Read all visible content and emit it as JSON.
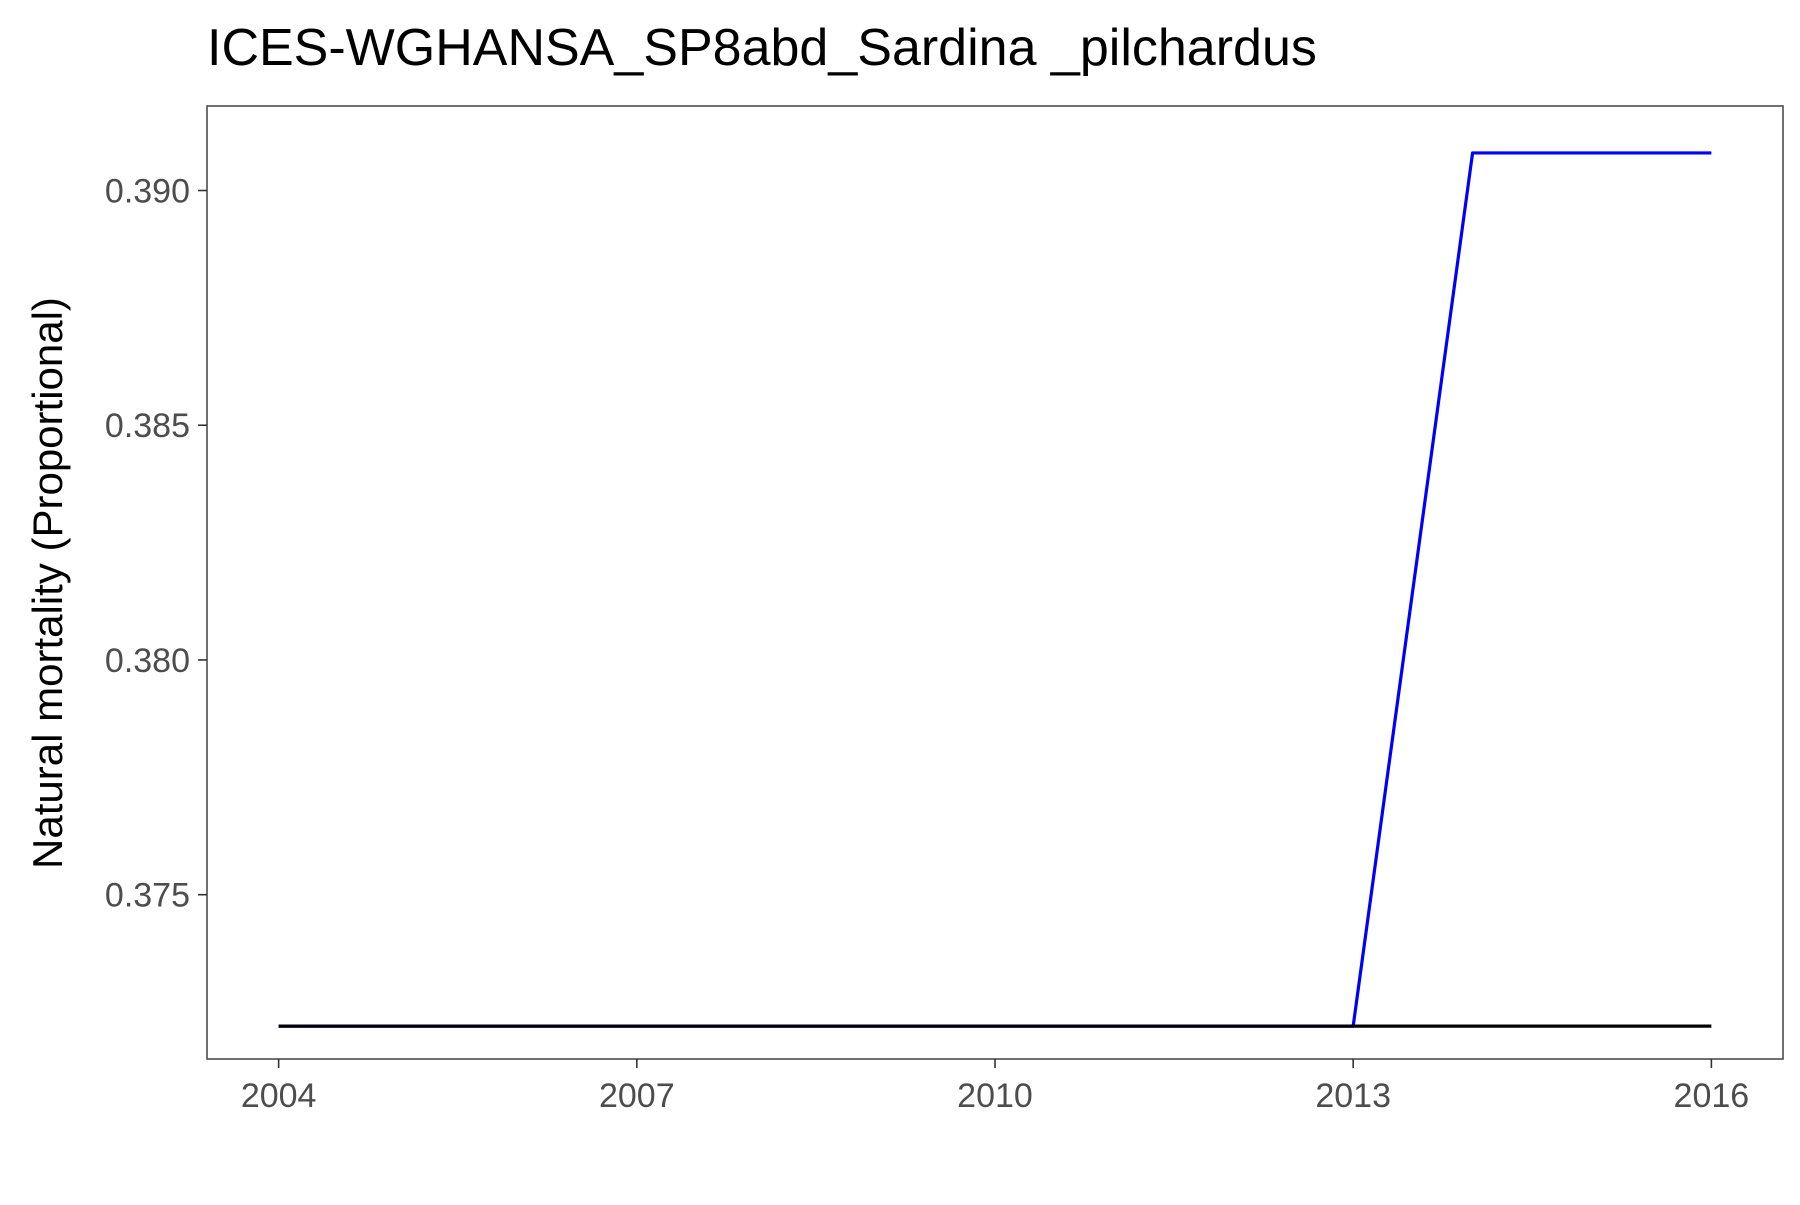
{
  "chart_data": {
    "type": "line",
    "title": "ICES-WGHANSA_SP8abd_Sardina _pilchardus",
    "xlabel": "",
    "ylabel": "Natural mortality (Proportional)",
    "x": [
      2004,
      2005,
      2006,
      2007,
      2008,
      2009,
      2010,
      2011,
      2012,
      2013,
      2014,
      2015,
      2016
    ],
    "xlim": [
      2003.4,
      2016.6
    ],
    "ylim": [
      0.3715,
      0.3918
    ],
    "x_ticks": [
      2004,
      2007,
      2010,
      2013,
      2016
    ],
    "y_ticks": [
      0.375,
      0.38,
      0.385,
      0.39
    ],
    "x_tick_labels": [
      "2004",
      "2007",
      "2010",
      "2013",
      "2016"
    ],
    "y_tick_labels": [
      "0.375",
      "0.380",
      "0.385",
      "0.390"
    ],
    "grid": false,
    "series": [
      {
        "color": "#0000ff",
        "values": [
          0.3722,
          0.3722,
          0.3722,
          0.3722,
          0.3722,
          0.3722,
          0.3722,
          0.3722,
          0.3722,
          0.3722,
          0.3908,
          0.3908,
          0.3908
        ]
      },
      {
        "color": "#000000",
        "values": [
          0.3722,
          0.3722,
          0.3722,
          0.3722,
          0.3722,
          0.3722,
          0.3722,
          0.3722,
          0.3722,
          0.3722,
          0.3722,
          0.3722,
          0.3722
        ]
      }
    ]
  },
  "colors": {
    "panel_border": "#4d4d4d",
    "tick_label": "#4d4d4d",
    "title": "#000000"
  }
}
